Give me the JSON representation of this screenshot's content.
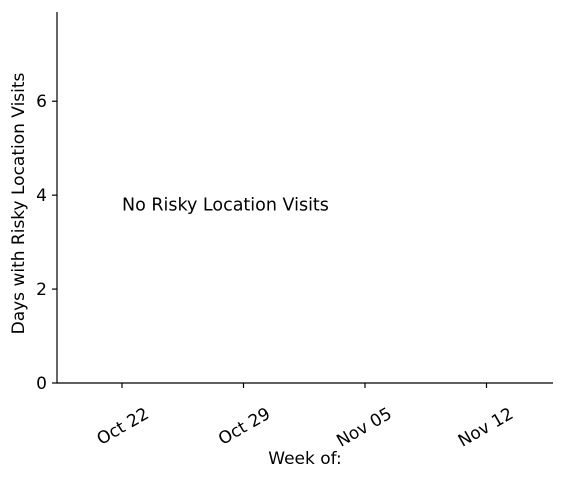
{
  "chart_data": {
    "type": "bar",
    "title": "",
    "xlabel": "Week of:",
    "ylabel": "Days with Risky Location Visits",
    "x_ticks": [
      "Oct 22",
      "Oct 29",
      "Nov 05",
      "Nov 12"
    ],
    "y_ticks": [
      0,
      2,
      4,
      6
    ],
    "ylim": [
      0,
      7.9
    ],
    "xlim": [
      "Oct 18",
      "Nov 16"
    ],
    "categories": [],
    "values": [],
    "annotation": {
      "text": "No Risky Location Visits",
      "x": "Oct 22",
      "y": 3.8
    },
    "grid": false,
    "legend": "none"
  }
}
